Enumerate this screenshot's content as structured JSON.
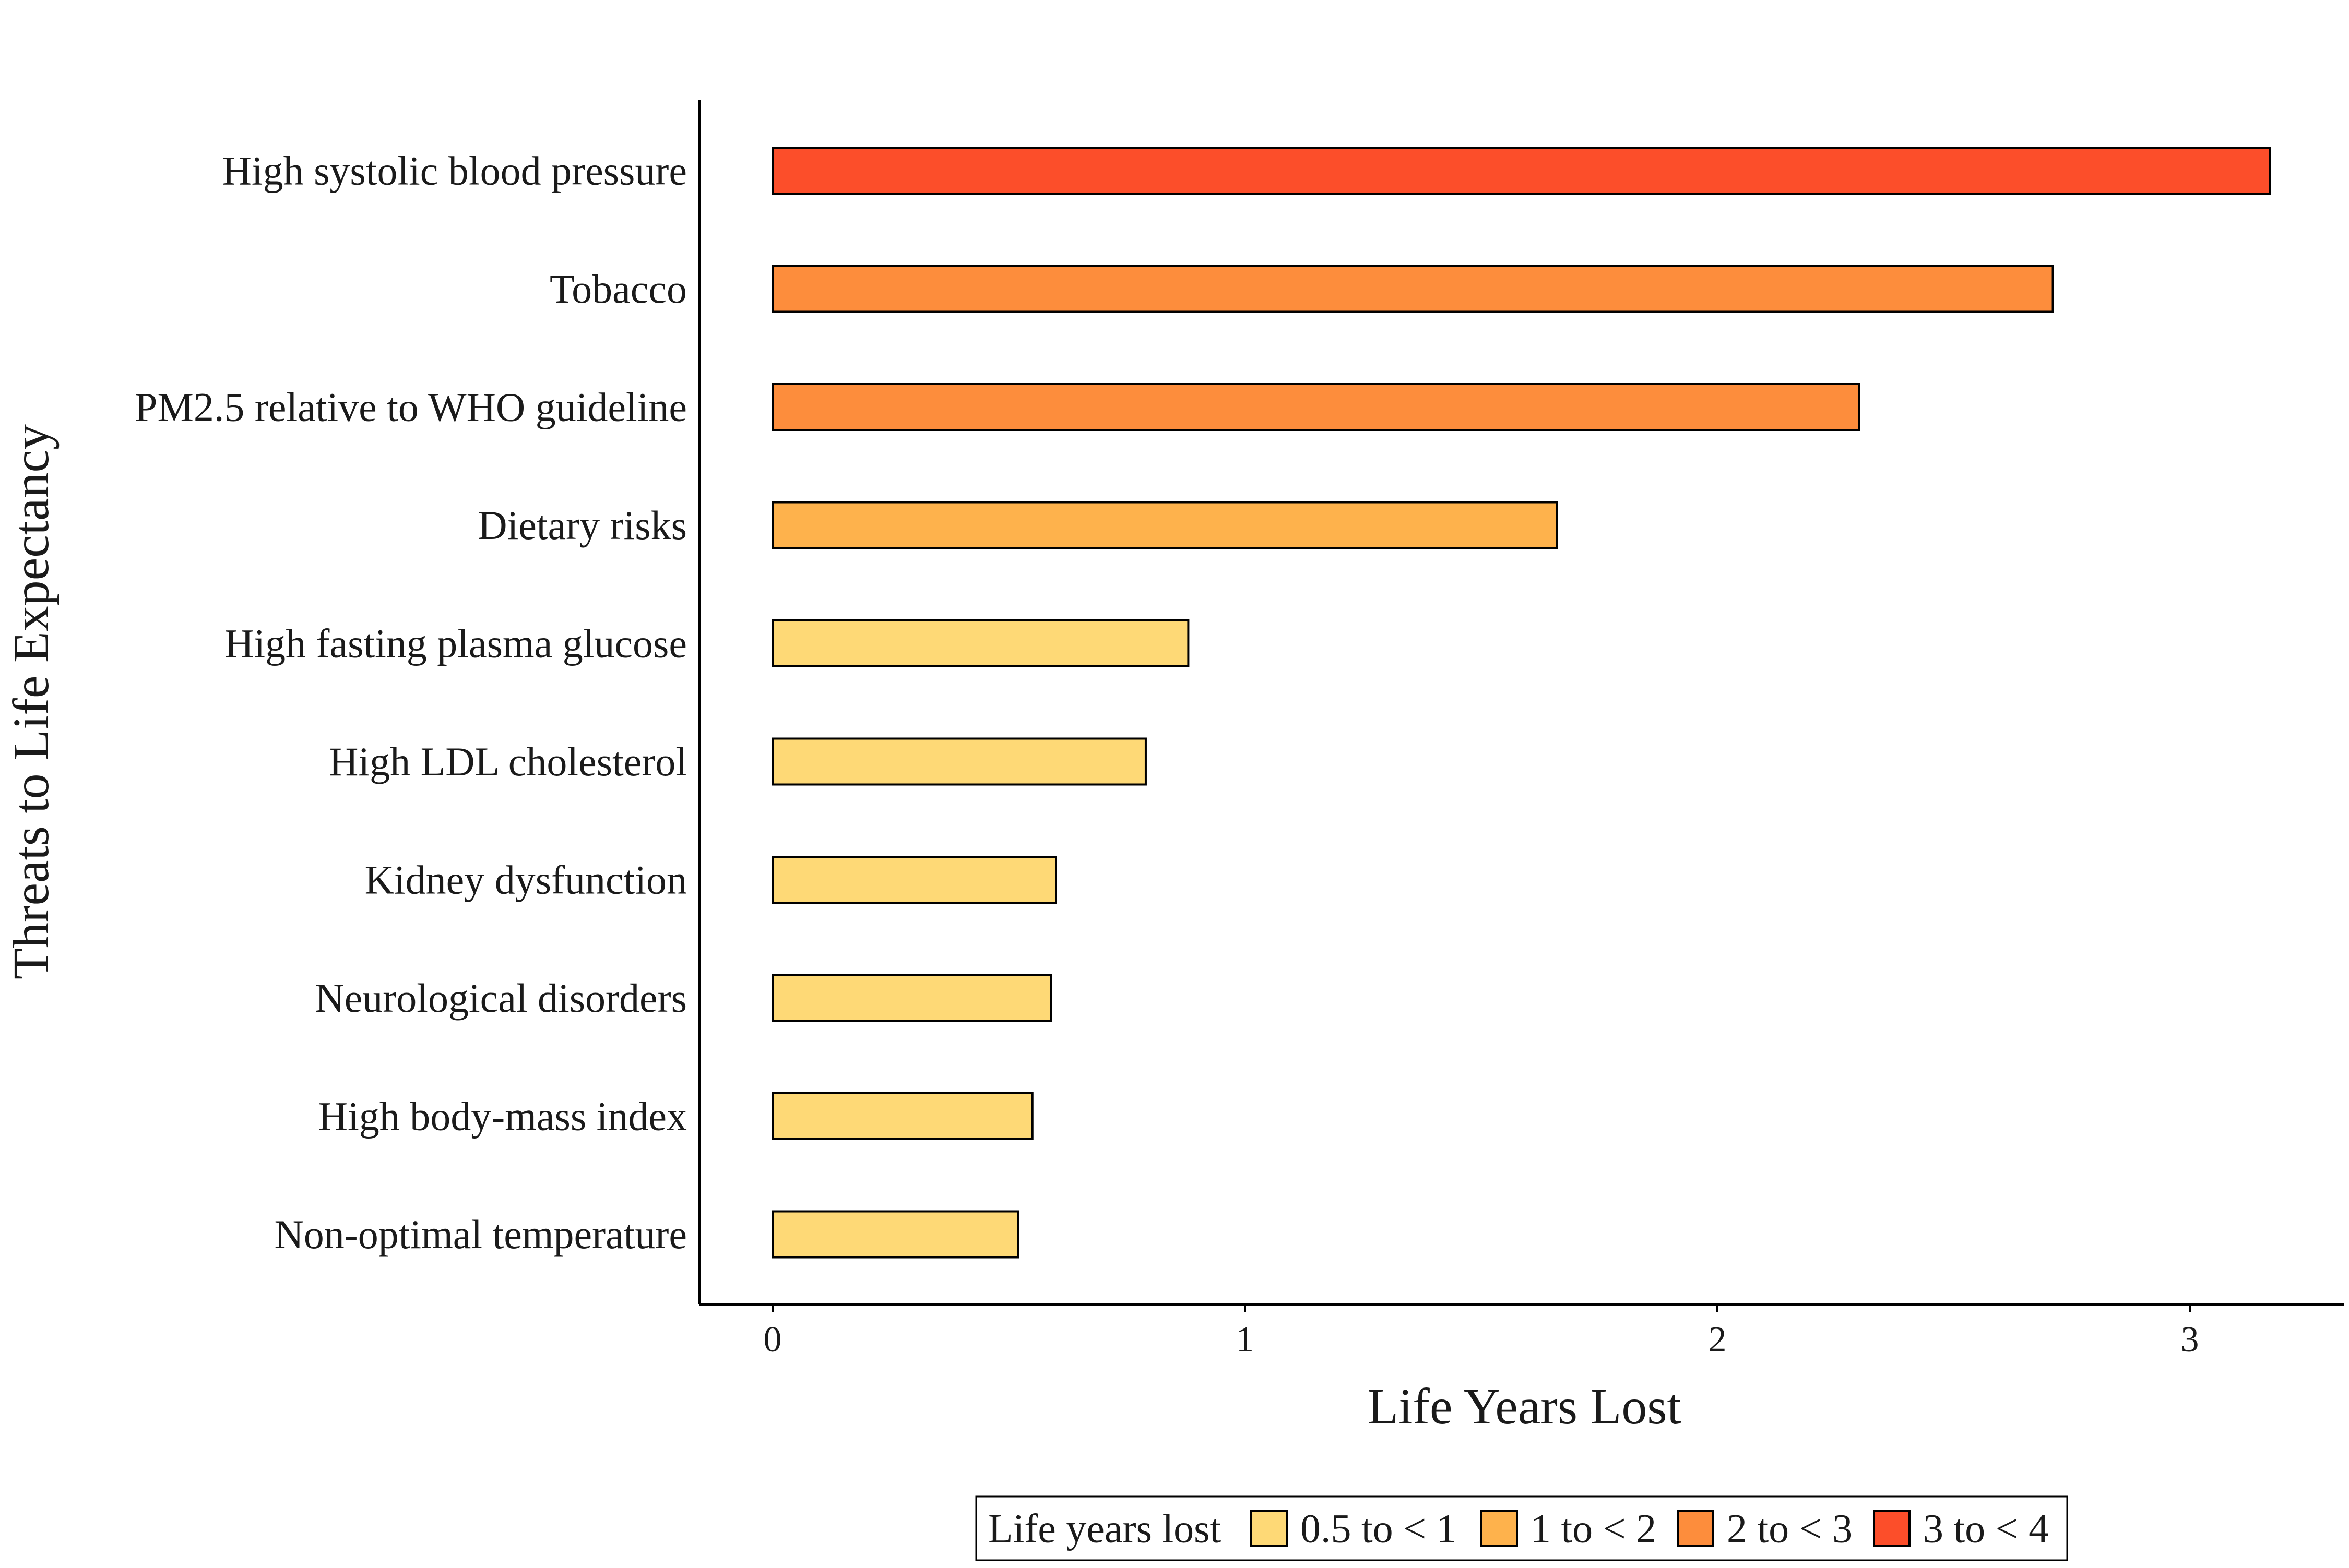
{
  "chart_data": {
    "type": "bar",
    "orientation": "horizontal",
    "xlabel": "Life Years Lost",
    "ylabel": "Threats to Life Expectancy",
    "xlim": [
      -0.16,
      3.3
    ],
    "xticks": [
      0,
      1,
      2,
      3
    ],
    "xtick_labels": [
      "0",
      "1",
      "2",
      "3"
    ],
    "grid": false,
    "legend_position": "bottom",
    "categories": [
      "High systolic blood pressure",
      "Tobacco",
      "PM2.5 relative to WHO guideline",
      "Dietary risks",
      "High fasting plasma glucose",
      "High LDL cholesterol",
      "Kidney dysfunction",
      "Neurological disorders",
      "High body-mass index",
      "Non-optimal temperature"
    ],
    "values": [
      3.17,
      2.71,
      2.3,
      1.66,
      0.88,
      0.79,
      0.6,
      0.59,
      0.55,
      0.52
    ],
    "value_classes": [
      "3 to < 4",
      "2 to < 3",
      "2 to < 3",
      "1 to < 2",
      "0.5 to < 1",
      "0.5 to < 1",
      "0.5 to < 1",
      "0.5 to < 1",
      "0.5 to < 1",
      "0.5 to < 1"
    ],
    "legend": {
      "title": "Life years lost",
      "entries": [
        {
          "label": "0.5 to < 1",
          "color": "#FED976"
        },
        {
          "label": "1 to < 2",
          "color": "#FEB24C"
        },
        {
          "label": "2 to < 3",
          "color": "#FD8D3C"
        },
        {
          "label": "3 to < 4",
          "color": "#FC4E2A"
        }
      ]
    },
    "bar_outline_color": "#000000"
  }
}
